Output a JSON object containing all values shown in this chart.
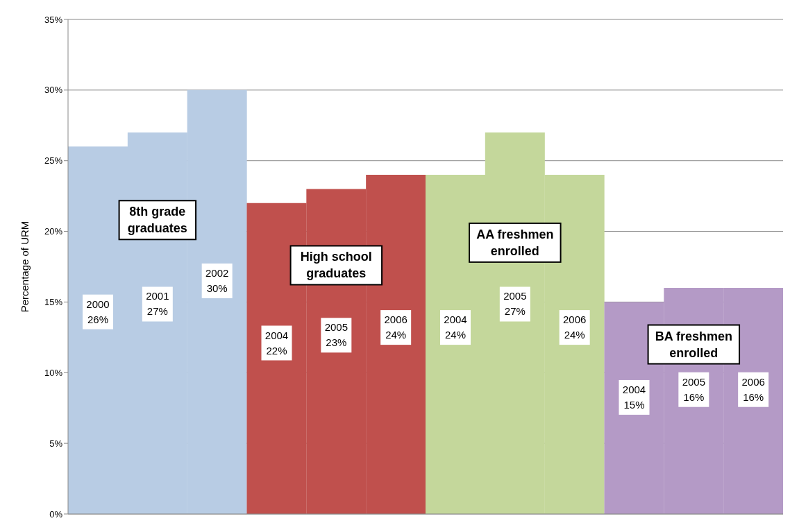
{
  "chart_data": {
    "type": "bar",
    "ylabel": "Percentage of URM",
    "categories": [
      null,
      null,
      null,
      null,
      null,
      null,
      null,
      null,
      null,
      null,
      null,
      null
    ],
    "legend": false,
    "grid": "y",
    "ylim": [
      0,
      35
    ],
    "yticks": [
      {
        "value": 0,
        "label": "0%"
      },
      {
        "value": 5,
        "label": "5%"
      },
      {
        "value": 10,
        "label": "10%"
      },
      {
        "value": 15,
        "label": "15%"
      },
      {
        "value": 20,
        "label": "20%"
      },
      {
        "value": 25,
        "label": "25%"
      },
      {
        "value": 30,
        "label": "30%"
      },
      {
        "value": 35,
        "label": "35%"
      }
    ],
    "series": [
      {
        "name": "8th grade graduates",
        "color": "#b8cce4",
        "values": [
          26,
          27,
          30,
          null,
          null,
          null,
          null,
          null,
          null,
          null,
          null,
          null
        ],
        "value_labels": [
          "2000\n26%",
          "2001\n27%",
          "2002\n30%",
          null,
          null,
          null,
          null,
          null,
          null,
          null,
          null,
          null
        ]
      },
      {
        "name": "High school graduates",
        "color": "#c0504d",
        "values": [
          null,
          null,
          null,
          22,
          23,
          24,
          null,
          null,
          null,
          null,
          null,
          null
        ],
        "value_labels": [
          null,
          null,
          null,
          "2004\n22%",
          "2005\n23%",
          "2006\n24%",
          null,
          null,
          null,
          null,
          null,
          null
        ]
      },
      {
        "name": "AA freshmen enrolled",
        "color": "#c4d79b",
        "values": [
          null,
          null,
          null,
          null,
          null,
          null,
          24,
          27,
          24,
          null,
          null,
          null
        ],
        "value_labels": [
          null,
          null,
          null,
          null,
          null,
          null,
          "2004\n24%",
          "2005\n27%",
          "2006\n24%",
          null,
          null,
          null
        ]
      },
      {
        "name": "BA freshmen enrolled",
        "color": "#b49ac6",
        "values": [
          null,
          null,
          null,
          null,
          null,
          null,
          null,
          null,
          null,
          15,
          16,
          16
        ],
        "value_labels": [
          null,
          null,
          null,
          null,
          null,
          null,
          null,
          null,
          null,
          "2004\n15%",
          "2005\n16%",
          "2006\n16%"
        ]
      }
    ]
  }
}
